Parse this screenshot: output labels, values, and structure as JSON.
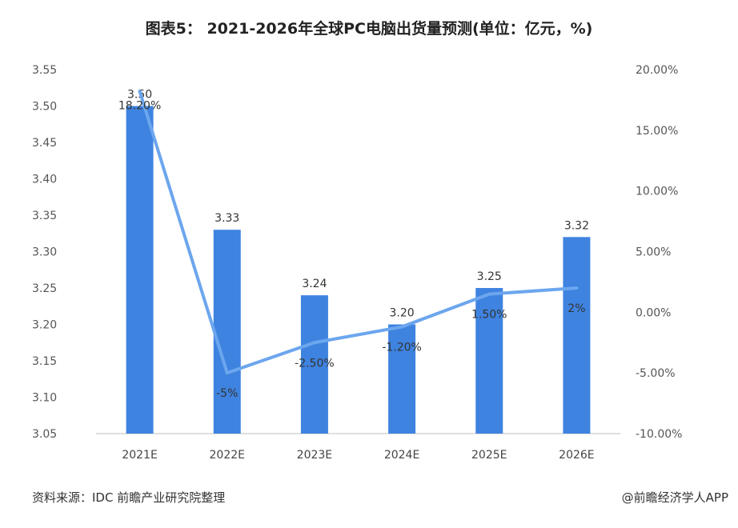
{
  "title": "图表5： 2021-2026年全球PC电脑出货量预测(单位：亿元，%)",
  "footer": {
    "source": "资料来源：IDC 前瞻产业研究院整理",
    "brand": "@前瞻经济学人APP"
  },
  "chart_data": {
    "type": "bar",
    "categories": [
      "2021E",
      "2022E",
      "2023E",
      "2024E",
      "2025E",
      "2026E"
    ],
    "series": [
      {
        "values": [
          3.5,
          3.33,
          3.24,
          3.2,
          3.25,
          3.32
        ],
        "labels": [
          "3.50",
          "3.33",
          "3.24",
          "3.20",
          "3.25",
          "3.32"
        ],
        "color": "#3f83e0",
        "axis": "left"
      },
      {
        "type": "line",
        "values": [
          18.2,
          -5,
          -2.5,
          -1.2,
          1.5,
          2
        ],
        "labels": [
          "18.20%",
          "-5%",
          "-2.50%",
          "-1.20%",
          "1.50%",
          "2%"
        ],
        "color": "#6ca6ee",
        "axis": "right"
      }
    ],
    "y_left": {
      "ylim": [
        3.05,
        3.55
      ],
      "ticks": [
        "3.55",
        "3.50",
        "3.45",
        "3.40",
        "3.35",
        "3.30",
        "3.25",
        "3.20",
        "3.15",
        "3.10",
        "3.05"
      ]
    },
    "y_right": {
      "ylim": [
        -10,
        20
      ],
      "ticks": [
        "20.00%",
        "15.00%",
        "10.00%",
        "5.00%",
        "0.00%",
        "-5.00%",
        "-10.00%"
      ]
    },
    "grid": false,
    "legend": "none"
  }
}
